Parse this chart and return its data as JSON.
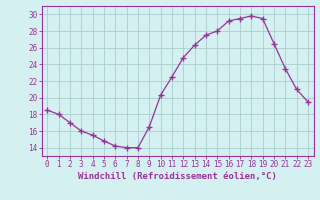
{
  "x": [
    0,
    1,
    2,
    3,
    4,
    5,
    6,
    7,
    8,
    9,
    10,
    11,
    12,
    13,
    14,
    15,
    16,
    17,
    18,
    19,
    20,
    21,
    22,
    23
  ],
  "y": [
    18.5,
    18.0,
    17.0,
    16.0,
    15.5,
    14.8,
    14.2,
    14.0,
    14.0,
    16.5,
    20.3,
    22.5,
    24.8,
    26.3,
    27.5,
    28.0,
    29.2,
    29.5,
    29.8,
    29.5,
    26.5,
    23.5,
    21.0,
    19.5
  ],
  "line_color": "#993399",
  "marker": "+",
  "marker_size": 4,
  "background_color": "#d4f0f0",
  "grid_color": "#aacfcf",
  "xlabel": "Windchill (Refroidissement éolien,°C)",
  "xlim": [
    -0.5,
    23.5
  ],
  "ylim": [
    13,
    31
  ],
  "yticks": [
    14,
    16,
    18,
    20,
    22,
    24,
    26,
    28,
    30
  ],
  "xticks": [
    0,
    1,
    2,
    3,
    4,
    5,
    6,
    7,
    8,
    9,
    10,
    11,
    12,
    13,
    14,
    15,
    16,
    17,
    18,
    19,
    20,
    21,
    22,
    23
  ],
  "tick_label_fontsize": 5.5,
  "xlabel_fontsize": 6.5
}
